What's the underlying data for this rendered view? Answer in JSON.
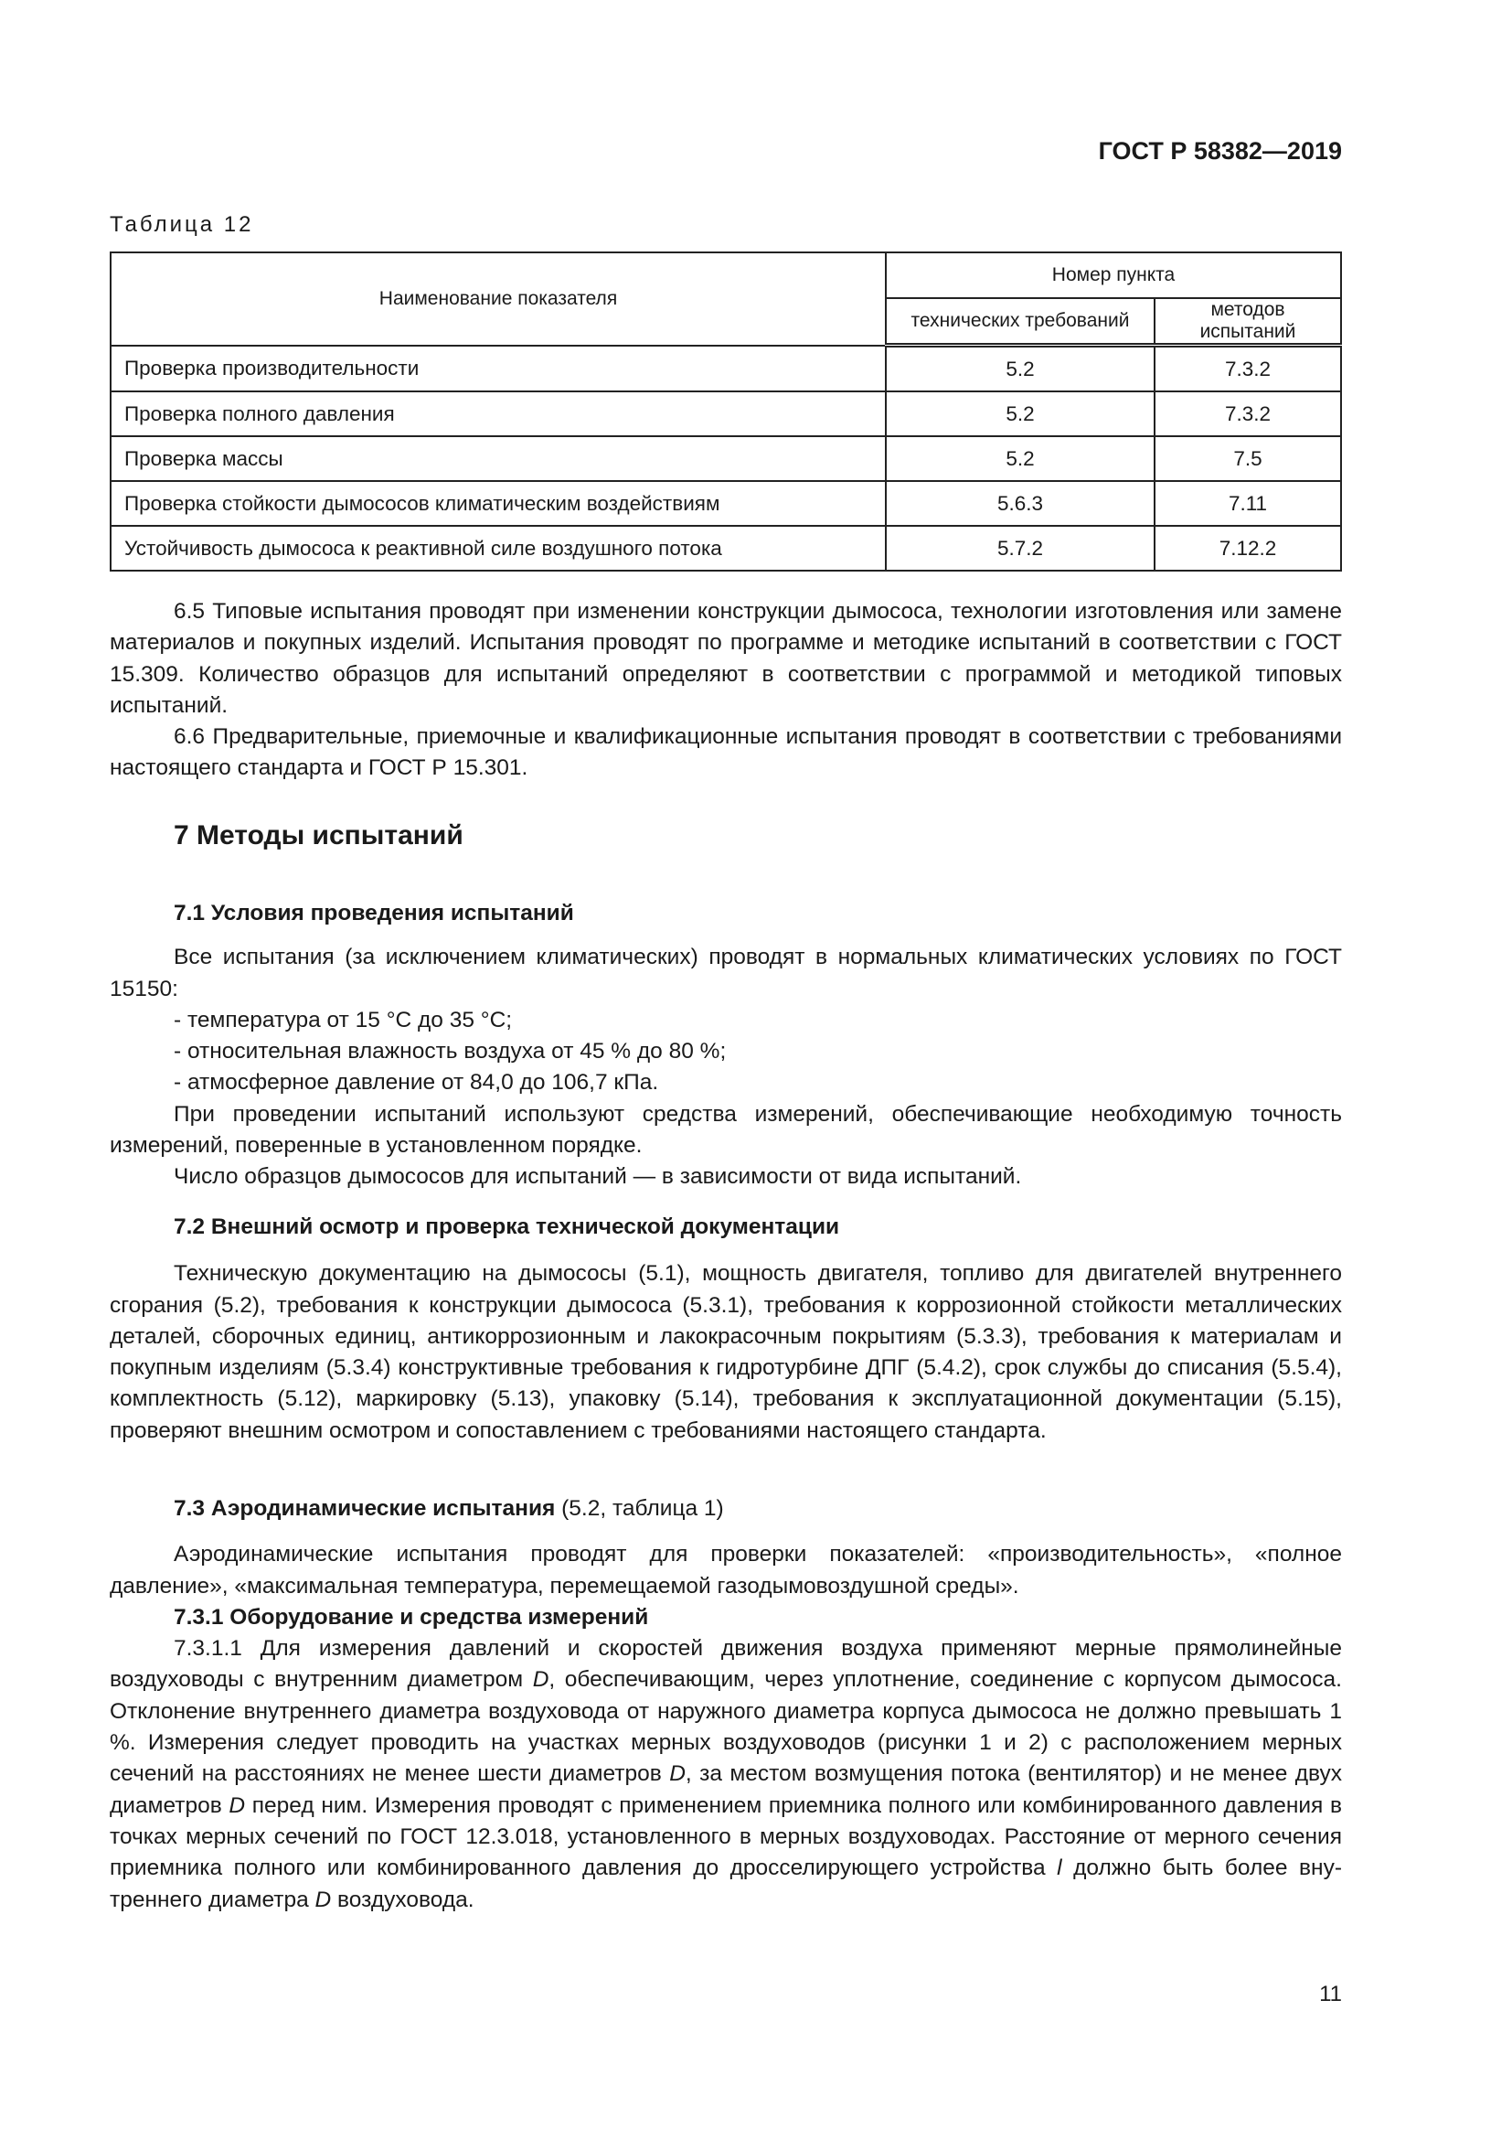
{
  "header": {
    "doc_id": "ГОСТ Р 58382—2019"
  },
  "table": {
    "caption": "Таблица 12",
    "col_name": "Наименование показателя",
    "col_group": "Номер пункта",
    "col_tech": "технических требований",
    "col_methods": "методов испытаний",
    "rows": [
      {
        "name": "Проверка производительности",
        "tech": "5.2",
        "method": "7.3.2"
      },
      {
        "name": "Проверка полного давления",
        "tech": "5.2",
        "method": "7.3.2"
      },
      {
        "name": "Проверка массы",
        "tech": "5.2",
        "method": "7.5"
      },
      {
        "name": "Проверка стойкости дымососов климатическим воздействиям",
        "tech": "5.6.3",
        "method": "7.11"
      },
      {
        "name": "Устойчивость дымососа к реактивной силе воздушного потока",
        "tech": "5.7.2",
        "method": "7.12.2"
      }
    ]
  },
  "p65": "6.5 Типовые испытания проводят при изменении конструкции дымососа, технологии изготовления или замене материалов и покупных изделий. Испытания проводят по программе и методике испытаний в соответствии с ГОСТ 15.309. Количество образцов для испытаний определяют в соответствии с про­граммой и методикой типовых испытаний.",
  "p66": "6.6 Предварительные, приемочные и квалификационные испытания проводят в соответствии с требованиями настоящего стандарта и ГОСТ Р 15.301.",
  "s7": {
    "title": "7 Методы испытаний"
  },
  "s71": {
    "title": "7.1 Условия проведения испытаний",
    "intro": "Все испытания (за исключением климатических) проводят в нормальных климатических условиях по ГОСТ 15150:",
    "list": [
      "- температура от 15 °С до 35 °С;",
      "- относительная влажность воздуха от 45 % до 80 %;",
      "- атмосферное давление от 84,0 до 106,7 кПа."
    ],
    "p2": "При проведении испытаний используют средства измерений, обеспечивающие необходимую точ­ность измерений, поверенные в установленном порядке.",
    "p3": "Число образцов дымососов для испытаний — в зависимости от вида испытаний."
  },
  "s72": {
    "title": "7.2 Внешний осмотр и проверка технической документации",
    "text": "Техническую документацию на дымососы (5.1), мощность двигателя, топливо для двигателей внутреннего сгорания (5.2), требования к конструкции дымососа (5.3.1), требования к коррозионной стойкости металлических деталей, сборочных единиц, антикоррозионным и лакокрасочным покрытиям (5.3.3), требования к материалам и покупным изделиям (5.3.4) конструктивные требования к гидротур­бине ДПГ (5.4.2), срок службы до списания (5.5.4), комплектность (5.12), маркировку (5.13), упаковку (5.14), требования к эксплуатационной документации (5.15), проверяют внешним осмотром и сопостав­лением с требованиями настоящего стандарта."
  },
  "s73": {
    "title": "7.3 Аэродинамические испытания",
    "title_ref": " (5.2, таблица 1)",
    "text": "Аэродинамические испытания проводят для проверки показателей: «производительность», «пол­ное давление», «максимальная температура, перемещаемой газодымовоздушной среды».",
    "s731_title": "7.3.1 Оборудование и средства измерений",
    "p7311": [
      "7.3.1.1 Для измерения давлений и скоростей движения воздуха применяют мерные прямоли­нейные воздуховоды с внутренним диаметром ",
      "D",
      ", обеспечивающим, через уплотнение, соединение с корпусом дымососа. Отклонение внутреннего диаметра воздуховода от наружного диаметра корпуса дымососа не должно превышать 1 %. Измерения следует проводить на участках мерных воздуховодов (рисунки 1 и 2) с расположением мерных сечений на расстояниях не менее шести диаметров ",
      "D",
      ", за местом возмущения потока (вентилятор) и не менее двух диаметров ",
      "D",
      " перед ним. Измерения про­водят с применением приемника полного или комбинированного давления в точках мерных сечений по ГОСТ 12.3.018, установленного в мерных воздуховодах. Расстояние от мерного сечения приемника полного или комбинированного давления до дросселирующего устройства ",
      "l",
      " должно быть более вну­треннего диаметра ",
      "D",
      " воздуховода."
    ]
  },
  "page_number": "11"
}
